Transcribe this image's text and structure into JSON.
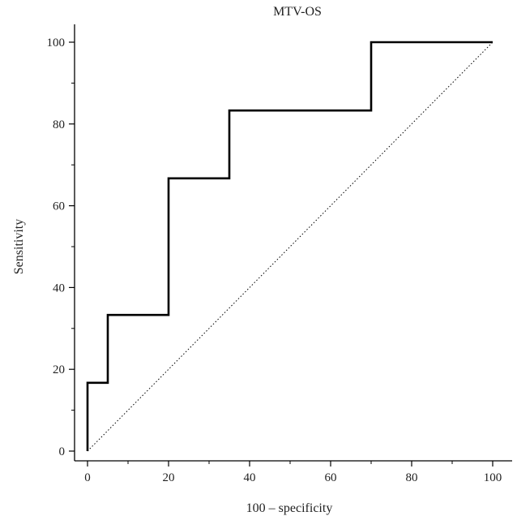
{
  "chart_data": {
    "type": "line",
    "title": "MTV-OS",
    "xlabel": "100 – specificity",
    "ylabel": "Sensitivity",
    "xlim": [
      0,
      100
    ],
    "ylim": [
      0,
      100
    ],
    "x_ticks": [
      0,
      20,
      40,
      60,
      80,
      100
    ],
    "y_ticks": [
      0,
      20,
      40,
      60,
      80,
      100
    ],
    "x_tick_labels": [
      "0",
      "20",
      "40",
      "60",
      "80",
      "100"
    ],
    "y_tick_labels": [
      "0",
      "20",
      "40",
      "60",
      "80",
      "100"
    ],
    "grid": false,
    "legend": "none",
    "series": [
      {
        "style": "step",
        "color": "#000000",
        "x": [
          0,
          0,
          5,
          5,
          20,
          20,
          35,
          35,
          70,
          70,
          100
        ],
        "y": [
          0,
          16.7,
          16.7,
          33.3,
          33.3,
          66.7,
          66.7,
          83.3,
          83.3,
          100,
          100
        ]
      },
      {
        "style": "dotted",
        "color": "#000000",
        "x": [
          0,
          100
        ],
        "y": [
          0,
          100
        ]
      }
    ]
  }
}
